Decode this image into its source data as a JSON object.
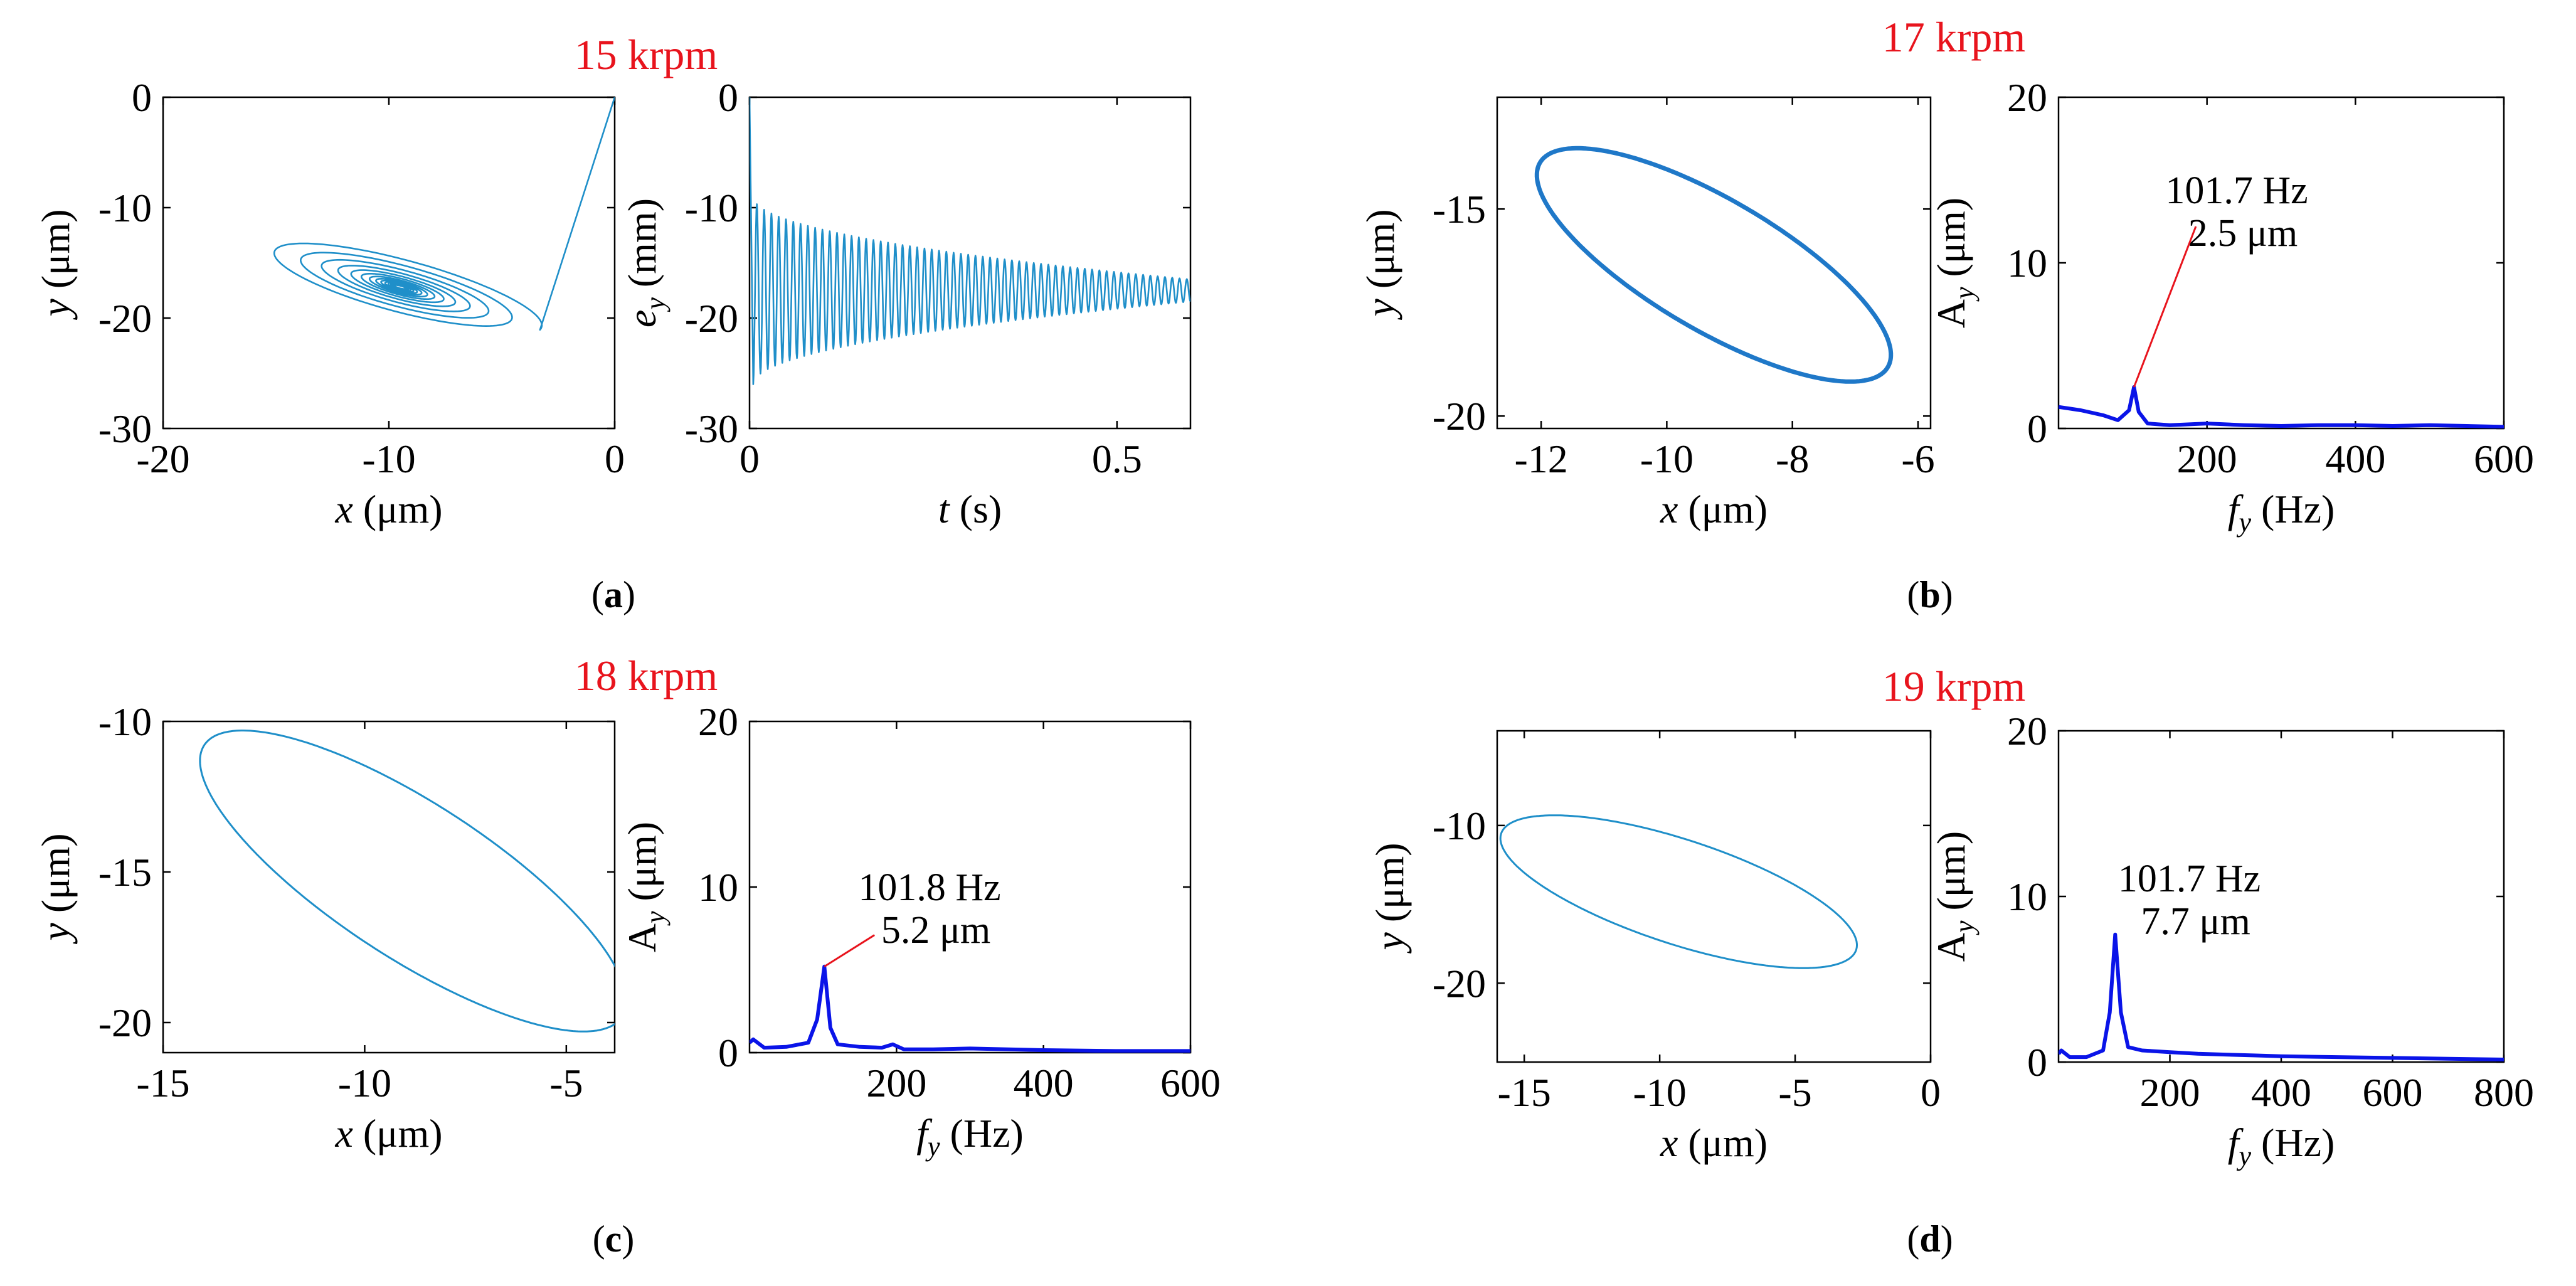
{
  "figure": {
    "panels": [
      {
        "caption_open": "(",
        "caption_letter": "a",
        "caption_close": ")",
        "speed_label": "15 krpm",
        "orbit": {
          "type": "line",
          "xlabel_sym": "x",
          "xlabel_unit": " (μm)",
          "ylabel_sym": "y",
          "ylabel_unit": " (μm)",
          "xlim": [
            -20,
            0
          ],
          "ylim": [
            -30,
            0
          ],
          "xticks": [
            -20,
            -10,
            0
          ],
          "xtick_labels": [
            "-20",
            "-10",
            "0"
          ],
          "yticks": [
            -30,
            -20,
            -10,
            0
          ],
          "ytick_labels": [
            "-30",
            "-20",
            "-10",
            "0"
          ],
          "curve": {
            "style": "spiral",
            "start": [
              0,
              0
            ],
            "center": [
              -9.5,
              -17.2
            ],
            "a": 7.3,
            "b": 2.4,
            "angle_deg": -32,
            "turns": 14,
            "color": "#1f8fc9",
            "width": 2.6
          }
        },
        "second": {
          "type": "line",
          "xlabel_sym": "t",
          "xlabel_unit": " (s)",
          "ylabel_sym": "e",
          "ylabel_sub": "y",
          "ylabel_unit": " (mm)",
          "xlim": [
            0,
            0.6
          ],
          "ylim": [
            -30,
            0
          ],
          "xticks": [
            0,
            0.5
          ],
          "xtick_labels": [
            "0",
            "0.5"
          ],
          "yticks": [
            -30,
            -20,
            -10,
            0
          ],
          "ytick_labels": [
            "-30",
            "-20",
            "-10",
            "0"
          ],
          "curve": {
            "style": "decay",
            "mean": -17.5,
            "start_amp": 8.5,
            "end_amp": 1.0,
            "cycles": 60,
            "t_start": 0.005,
            "t_end": 0.6,
            "color": "#1f8fc9",
            "width": 2.6
          }
        }
      },
      {
        "caption_open": "(",
        "caption_letter": "b",
        "caption_close": ")",
        "speed_label": "17 krpm",
        "orbit": {
          "type": "line",
          "xlabel_sym": "x",
          "xlabel_unit": " (μm)",
          "ylabel_sym": "y",
          "ylabel_unit": " (μm)",
          "xlim": [
            -12.7,
            -5.8
          ],
          "ylim": [
            -20.3,
            -12.3
          ],
          "xticks": [
            -12,
            -10,
            -8,
            -6
          ],
          "xtick_labels": [
            "-12",
            "-10",
            "-8",
            "-6"
          ],
          "yticks": [
            -20,
            -15
          ],
          "ytick_labels": [
            "-20",
            "-15"
          ],
          "curve": {
            "style": "ellipse",
            "center": [
              -9.25,
              -16.35
            ],
            "a": 3.75,
            "b": 1.35,
            "angle_deg": -45,
            "color": "#1f78c8",
            "width": 7
          }
        },
        "second": {
          "type": "line",
          "xlabel_sym": "f",
          "xlabel_sub": "y",
          "xlabel_unit": " (Hz)",
          "ylabel_sym": "A",
          "ylabel_sub": "y",
          "ylabel_unit": " (μm)",
          "xlim": [
            0,
            600
          ],
          "ylim": [
            0,
            20
          ],
          "xticks": [
            200,
            400,
            600
          ],
          "xtick_labels": [
            "200",
            "400",
            "600"
          ],
          "yticks": [
            0,
            10,
            20
          ],
          "ytick_labels": [
            "0",
            "10",
            "20"
          ],
          "series": {
            "x": [
              0,
              30,
              60,
              80,
              95,
              101.7,
              108,
              120,
              150,
              200,
              250,
              300,
              350,
              400,
              450,
              500,
              550,
              600
            ],
            "y": [
              1.3,
              1.1,
              0.8,
              0.5,
              1.1,
              2.5,
              1.0,
              0.3,
              0.2,
              0.3,
              0.2,
              0.15,
              0.2,
              0.2,
              0.15,
              0.2,
              0.15,
              0.1
            ],
            "color": "#0a14e8",
            "width": 6
          },
          "annotation": {
            "line1": "101.7 Hz",
            "line2": "2.5 μm",
            "peak": [
              101.7,
              2.5
            ]
          }
        }
      },
      {
        "caption_open": "(",
        "caption_letter": "c",
        "caption_close": ")",
        "speed_label": "18 krpm",
        "orbit": {
          "type": "line",
          "xlabel_sym": "x",
          "xlabel_unit": " (μm)",
          "ylabel_sym": "y",
          "ylabel_unit": " (μm)",
          "xlim": [
            -15,
            -3.8
          ],
          "ylim": [
            -21,
            -10
          ],
          "xticks": [
            -15,
            -10,
            -5
          ],
          "xtick_labels": [
            "-15",
            "-10",
            "-5"
          ],
          "yticks": [
            -20,
            -15,
            -10
          ],
          "ytick_labels": [
            "-20",
            "-15",
            "-10"
          ],
          "curve": {
            "style": "ellipse",
            "center": [
              -8.8,
              -15.3
            ],
            "a": 6.9,
            "b": 2.3,
            "angle_deg": -43,
            "color": "#1f8fc9",
            "width": 3
          }
        },
        "second": {
          "type": "line",
          "xlabel_sym": "f",
          "xlabel_sub": "y",
          "xlabel_unit": " (Hz)",
          "ylabel_sym": "A",
          "ylabel_sub": "y",
          "ylabel_unit": " (μm)",
          "xlim": [
            0,
            600
          ],
          "ylim": [
            0,
            20
          ],
          "xticks": [
            200,
            400,
            600
          ],
          "xtick_labels": [
            "200",
            "400",
            "600"
          ],
          "yticks": [
            0,
            10,
            20
          ],
          "ytick_labels": [
            "0",
            "10",
            "20"
          ],
          "series": {
            "x": [
              0,
              5,
              20,
              50,
              80,
              92,
              101.8,
              110,
              120,
              150,
              180,
              195,
              210,
              250,
              300,
              400,
              500,
              600
            ],
            "y": [
              0.6,
              0.8,
              0.3,
              0.35,
              0.6,
              2.0,
              5.2,
              1.5,
              0.5,
              0.35,
              0.3,
              0.5,
              0.2,
              0.2,
              0.25,
              0.15,
              0.1,
              0.1
            ],
            "color": "#0a14e8",
            "width": 6
          },
          "annotation": {
            "line1": "101.8 Hz",
            "line2": "5.2 μm",
            "peak": [
              101.8,
              5.2
            ]
          }
        }
      },
      {
        "caption_open": "(",
        "caption_letter": "d",
        "caption_close": ")",
        "speed_label": "19 krpm",
        "orbit": {
          "type": "line",
          "xlabel_sym": "x",
          "xlabel_unit": " (μm)",
          "ylabel_sym": "y",
          "ylabel_unit": " (μm)",
          "xlim": [
            -16,
            0
          ],
          "ylim": [
            -25,
            -4
          ],
          "xticks": [
            -15,
            -10,
            -5,
            0
          ],
          "xtick_labels": [
            "-15",
            "-10",
            "-5",
            "0"
          ],
          "yticks": [
            -20,
            -10
          ],
          "ytick_labels": [
            "-20",
            "-10"
          ],
          "curve": {
            "style": "ellipse",
            "center": [
              -9.3,
              -14.2
            ],
            "a": 7.6,
            "b": 3.0,
            "angle_deg": -33,
            "color": "#1f8fc9",
            "width": 3
          }
        },
        "second": {
          "type": "line",
          "xlabel_sym": "f",
          "xlabel_sub": "y",
          "xlabel_unit": " (Hz)",
          "ylabel_sym": "A",
          "ylabel_sub": "y",
          "ylabel_unit": " (μm)",
          "xlim": [
            0,
            800
          ],
          "ylim": [
            0,
            20
          ],
          "xticks": [
            200,
            400,
            600,
            800
          ],
          "xtick_labels": [
            "200",
            "400",
            "600",
            "800"
          ],
          "yticks": [
            0,
            10,
            20
          ],
          "ytick_labels": [
            "0",
            "10",
            "20"
          ],
          "series": {
            "x": [
              0,
              5,
              20,
              50,
              80,
              92,
              101.7,
              112,
              125,
              150,
              200,
              250,
              300,
              350,
              400,
              500,
              600,
              700,
              800
            ],
            "y": [
              0.5,
              0.7,
              0.3,
              0.3,
              0.7,
              3.0,
              7.7,
              3.0,
              0.9,
              0.7,
              0.6,
              0.5,
              0.45,
              0.4,
              0.35,
              0.3,
              0.25,
              0.2,
              0.15
            ],
            "color": "#0a14e8",
            "width": 6
          },
          "annotation": {
            "line1": "101.7 Hz",
            "line2": "7.7 μm"
          }
        }
      }
    ]
  }
}
